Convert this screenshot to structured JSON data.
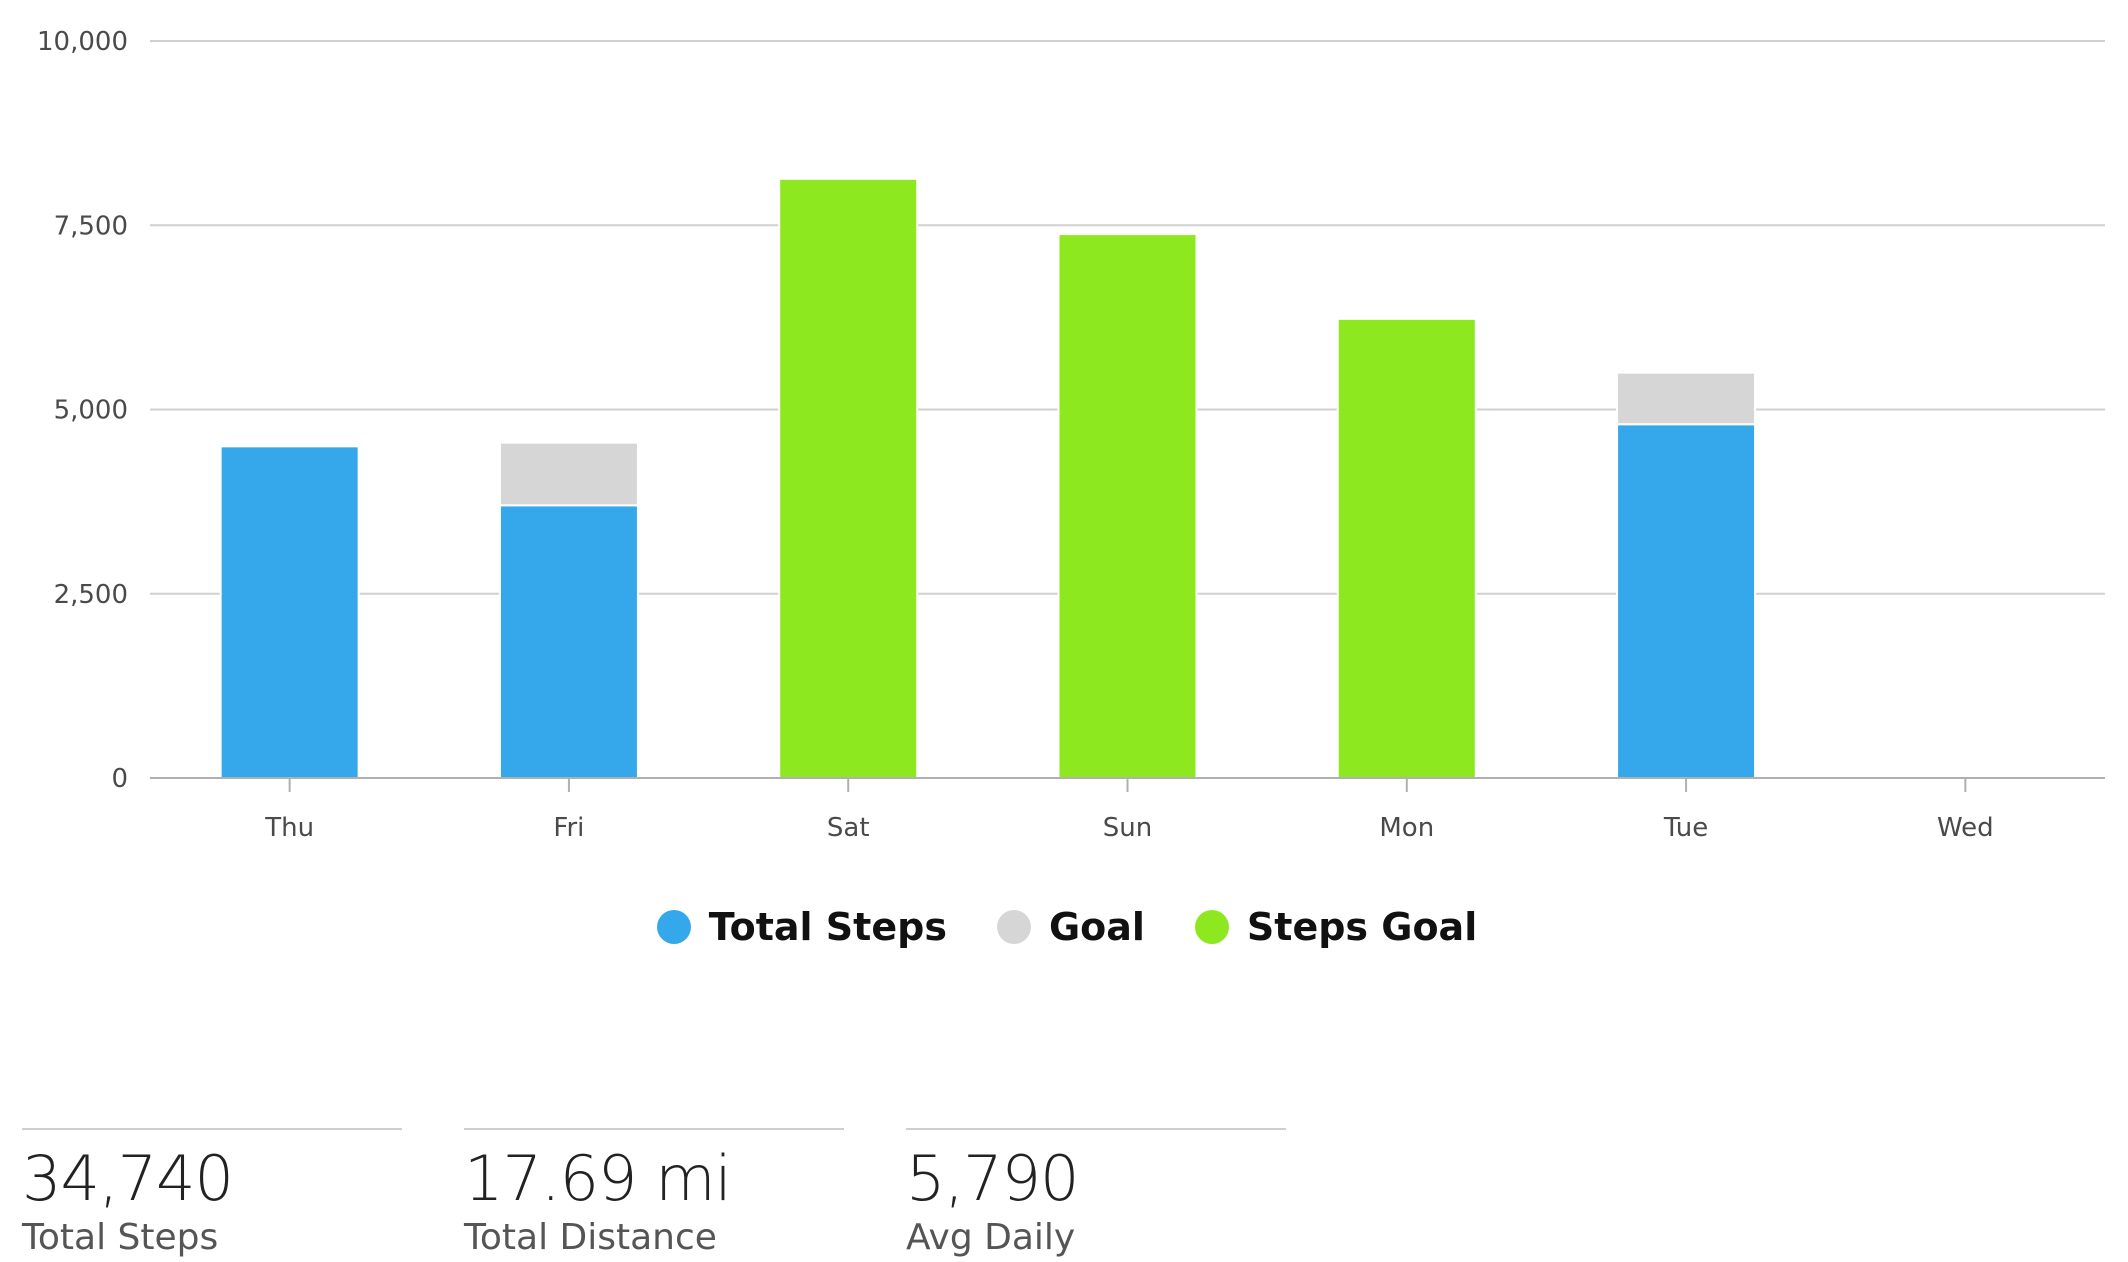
{
  "chart_data": {
    "type": "bar",
    "stacked": true,
    "categories": [
      "Thu",
      "Fri",
      "Sat",
      "Sun",
      "Mon",
      "Tue",
      "Wed"
    ],
    "series": [
      {
        "name": "Total Steps",
        "color": "#35a8ec",
        "values": [
          4500,
          3700,
          null,
          null,
          null,
          4800,
          0
        ]
      },
      {
        "name": "Goal",
        "color": "#d6d6d6",
        "values": [
          0,
          850,
          null,
          null,
          null,
          700,
          0
        ]
      },
      {
        "name": "Steps Goal",
        "color": "#8de81f",
        "values": [
          null,
          null,
          8130,
          7380,
          6230,
          null,
          null
        ]
      }
    ],
    "ylim": [
      0,
      10000
    ],
    "yticks": [
      0,
      2500,
      5000,
      7500,
      10000
    ],
    "ytick_labels": [
      "0",
      "2,500",
      "5,000",
      "7,500",
      "10,000"
    ],
    "grid": true,
    "legend_position": "bottom-center"
  },
  "legend": {
    "items": [
      {
        "label": "Total Steps",
        "color": "#35a8ec"
      },
      {
        "label": "Goal",
        "color": "#d6d6d6"
      },
      {
        "label": "Steps Goal",
        "color": "#8de81f"
      }
    ]
  },
  "stats": [
    {
      "value": "34,740",
      "label": "Total Steps"
    },
    {
      "value": "17.69 mi",
      "label": "Total Distance"
    },
    {
      "value": "5,790",
      "label": "Avg Daily"
    }
  ]
}
